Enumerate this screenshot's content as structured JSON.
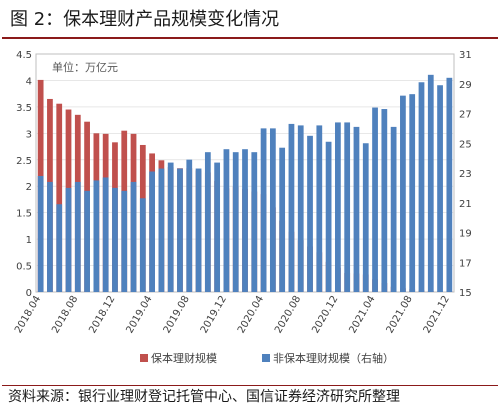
{
  "figure": {
    "title": "图 2：保本理财产品规模变化情况",
    "source": "资料来源：银行业理财登记托管中心、国信证券经济研究所整理"
  },
  "colors": {
    "red_series": "#c0504d",
    "blue_series": "#4f81bd",
    "rule": "#8b1a1a",
    "axis_text": "#404040",
    "grid": "#d9d9d9"
  },
  "chart_data": {
    "type": "bar",
    "unit_label": "单位：万亿元",
    "x_tick_labels": [
      "2018.04",
      "2018.08",
      "2018.12",
      "2019.04",
      "2019.08",
      "2019.12",
      "2020.04",
      "2020.08",
      "2020.12",
      "2021.04",
      "2021.08",
      "2021.12"
    ],
    "categories": [
      "2018.04",
      "2018.05",
      "2018.06",
      "2018.07",
      "2018.08",
      "2018.09",
      "2018.10",
      "2018.11",
      "2018.12",
      "2019.01",
      "2019.02",
      "2019.03",
      "2019.04",
      "2019.05",
      "2019.06",
      "2019.07",
      "2019.08",
      "2019.09",
      "2019.10",
      "2019.11",
      "2019.12",
      "2020.01",
      "2020.02",
      "2020.03",
      "2020.04",
      "2020.05",
      "2020.06",
      "2020.07",
      "2020.08",
      "2020.09",
      "2020.10",
      "2020.11",
      "2020.12",
      "2021.01",
      "2021.02",
      "2021.03",
      "2021.04",
      "2021.05",
      "2021.06",
      "2021.07",
      "2021.08",
      "2021.09",
      "2021.10",
      "2021.11",
      "2021.12"
    ],
    "y_left": {
      "min": 0,
      "max": 4.5,
      "ticks": [
        "0",
        "0.5",
        "1",
        "1.5",
        "2",
        "2.5",
        "3",
        "3.5",
        "4",
        "4.5"
      ]
    },
    "y_right": {
      "min": 15,
      "max": 31,
      "ticks": [
        "15",
        "17",
        "19",
        "21",
        "23",
        "25",
        "27",
        "29",
        "31"
      ]
    },
    "series": [
      {
        "name": "保本理财规模",
        "axis": "left",
        "values": [
          4.01,
          3.65,
          3.56,
          3.45,
          3.35,
          3.22,
          3.0,
          2.99,
          2.83,
          3.05,
          2.99,
          2.78,
          2.62,
          2.49,
          2.36,
          2.34,
          2.34,
          2.3,
          2.26,
          2.1,
          1.96,
          1.99,
          1.95,
          1.9,
          1.85,
          1.6,
          1.35,
          1.14,
          0.98,
          0.86,
          0.75,
          0.57,
          0.46,
          0.36,
          0.35,
          0.33,
          0.24,
          0.17,
          0.1,
          0.07,
          0.05,
          0.03,
          0.02,
          0.01,
          0.01
        ]
      },
      {
        "name": "非保本理财规模（右轴）",
        "axis": "right",
        "values": [
          22.8,
          22.4,
          20.9,
          22.0,
          22.4,
          21.8,
          22.5,
          22.7,
          22.0,
          21.8,
          22.4,
          21.3,
          23.1,
          23.3,
          23.7,
          23.3,
          23.9,
          23.3,
          24.4,
          23.7,
          24.6,
          24.4,
          24.6,
          24.4,
          26.0,
          26.0,
          24.7,
          26.3,
          26.2,
          25.5,
          26.2,
          25.1,
          26.4,
          26.4,
          26.1,
          25.0,
          27.4,
          27.3,
          26.1,
          28.2,
          28.3,
          29.1,
          29.6,
          28.9,
          29.4
        ]
      }
    ]
  }
}
